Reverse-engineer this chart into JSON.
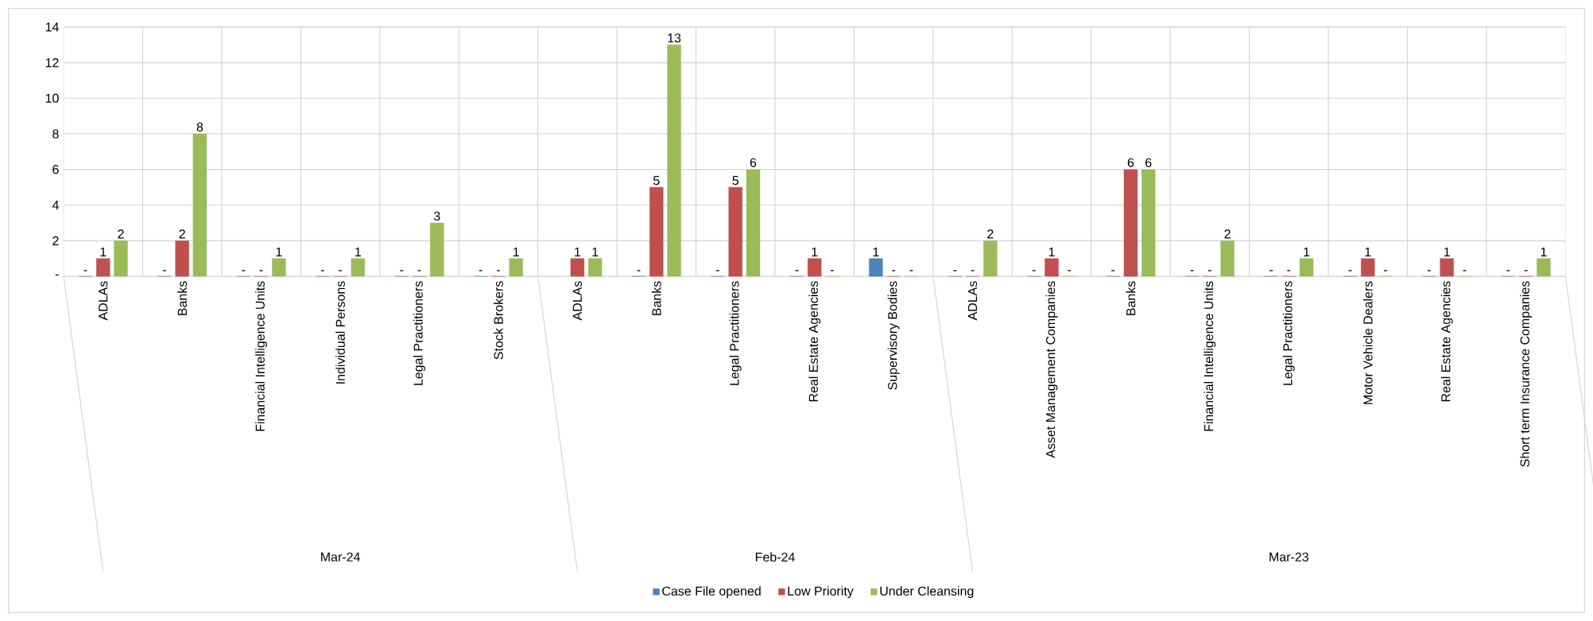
{
  "chart_data": {
    "type": "bar",
    "categories": [
      "ADLAs",
      "Banks",
      "Financial Intelligence Units",
      "Individual Persons",
      "Legal Practitioners",
      "Stock Brokers",
      "ADLAs",
      "Banks",
      "Legal Practitioners",
      "Real Estate Agencies",
      "Supervisory Bodies",
      "ADLAs",
      "Asset Management Companies",
      "Banks",
      "Financial Intelligence Units",
      "Legal Practitioners",
      "Motor Vehicle Dealers",
      "Real Estate Agencies",
      "Short term Insurance Companies"
    ],
    "series": [
      {
        "name": "Case File opened",
        "color": "#4f81bd",
        "values": [
          0,
          0,
          0,
          0,
          0,
          0,
          null,
          0,
          0,
          0,
          1,
          0,
          0,
          0,
          0,
          0,
          0,
          0,
          0
        ],
        "value_labels": [
          "-",
          "-",
          "-",
          "-",
          "-",
          "-",
          null,
          "-",
          "-",
          "-",
          "1",
          "-",
          "-",
          "-",
          "-",
          "-",
          "-",
          "-",
          "-"
        ]
      },
      {
        "name": "Low Priority",
        "color": "#c0504d",
        "values": [
          1,
          2,
          0,
          0,
          0,
          0,
          1,
          5,
          5,
          1,
          0,
          0,
          1,
          6,
          0,
          0,
          1,
          1,
          0
        ],
        "value_labels": [
          "1",
          "2",
          "-",
          "-",
          "-",
          "-",
          "1",
          "5",
          "5",
          "1",
          "-",
          "-",
          "1",
          "6",
          "-",
          "-",
          "1",
          "1",
          "-"
        ]
      },
      {
        "name": "Under Cleansing",
        "color": "#9bbb59",
        "values": [
          2,
          8,
          1,
          1,
          3,
          1,
          1,
          13,
          6,
          0,
          0,
          2,
          0,
          6,
          2,
          1,
          0,
          0,
          1
        ],
        "value_labels": [
          "2",
          "8",
          "1",
          "1",
          "3",
          "1",
          "1",
          "13",
          "6",
          "-",
          "-",
          "2",
          "-",
          "6",
          "2",
          "1",
          "-",
          "-",
          "1"
        ]
      }
    ],
    "ylim": [
      0,
      14
    ],
    "yticks": [
      {
        "value": 0,
        "label": "-"
      },
      2,
      4,
      6,
      8,
      10,
      12,
      14
    ],
    "grid": true,
    "legend": "bottom",
    "annotations": [
      "Mar-24",
      "Feb-24",
      "Mar-23"
    ]
  }
}
